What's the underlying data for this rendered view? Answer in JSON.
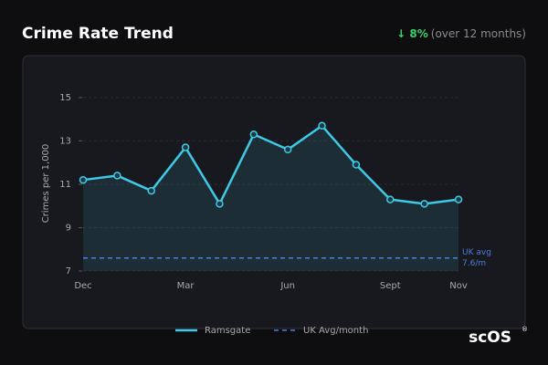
{
  "header": {
    "title": "Crime Rate Trend",
    "change": "↓ 8%",
    "change_note": "(over 12 months)"
  },
  "chart_data": {
    "type": "line",
    "y_label": "Crimes per 1,000",
    "categories": [
      "Dec",
      null,
      null,
      "Mar",
      null,
      null,
      "Jun",
      null,
      null,
      "Sept",
      null,
      "Nov"
    ],
    "series": [
      {
        "name": "Ramsgate",
        "color": "#3ec9e6",
        "values": [
          11.2,
          11.4,
          10.7,
          12.7,
          10.1,
          13.3,
          12.6,
          13.7,
          11.9,
          10.3,
          10.1,
          10.3
        ]
      }
    ],
    "reference": {
      "name": "UK Avg/month",
      "color": "#4a7fe0",
      "value": 7.6,
      "label_lines": [
        "UK avg",
        "7.6/m"
      ]
    },
    "ylim": [
      7,
      15.5
    ],
    "yticks": [
      7,
      9,
      11,
      13,
      15
    ],
    "grid": true
  },
  "logo": {
    "left": "sc",
    "right": "OS",
    "mark": "®"
  }
}
